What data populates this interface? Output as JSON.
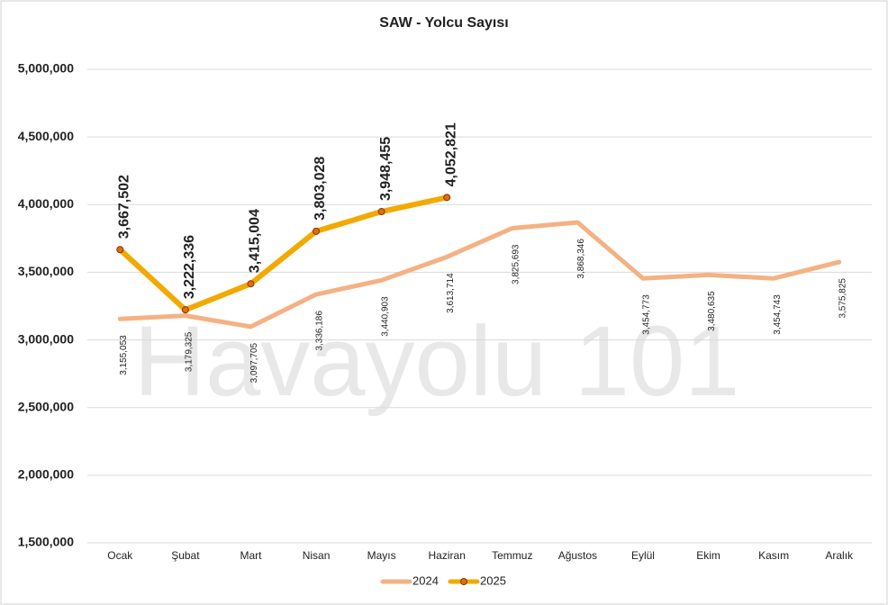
{
  "chart_data": {
    "type": "line",
    "title": "SAW - Yolcu Sayısı",
    "watermark": "Havayolu 101",
    "categories": [
      "Ocak",
      "Şubat",
      "Mart",
      "Nisan",
      "Mayıs",
      "Haziran",
      "Temmuz",
      "Ağustos",
      "Eylül",
      "Ekim",
      "Kasım",
      "Aralık"
    ],
    "series": [
      {
        "name": "2024",
        "color": "#f4b183",
        "marker": false,
        "values": [
          3155053,
          3179325,
          3097705,
          3336186,
          3440903,
          3613714,
          3825693,
          3868346,
          3454773,
          3480635,
          3454743,
          3575825
        ],
        "value_labels": [
          "3,155,053",
          "3,179,325",
          "3,097,705",
          "3,336,186",
          "3,440,903",
          "3,613,714",
          "3,825,693",
          "3,868,346",
          "3,454,773",
          "3,480,635",
          "3,454,743",
          "3,575,825"
        ]
      },
      {
        "name": "2025",
        "color": "#f2a900",
        "marker": true,
        "marker_color": "#e46c0a",
        "values": [
          3667502,
          3222336,
          3415004,
          3803028,
          3948455,
          4052821,
          null,
          null,
          null,
          null,
          null,
          null
        ],
        "value_labels": [
          "3,667,502",
          "3,222,336",
          "3,415,004",
          "3,803,028",
          "3,948,455",
          "4,052,821",
          null,
          null,
          null,
          null,
          null,
          null
        ]
      }
    ],
    "ylim": [
      1500000,
      5000000
    ],
    "yticks": [
      {
        "value": 1500000,
        "label": "1,500,000"
      },
      {
        "value": 2000000,
        "label": "2,000,000"
      },
      {
        "value": 2500000,
        "label": "2,500,000"
      },
      {
        "value": 3000000,
        "label": "3,000,000"
      },
      {
        "value": 3500000,
        "label": "3,500,000"
      },
      {
        "value": 4000000,
        "label": "4,000,000"
      },
      {
        "value": 4500000,
        "label": "4,500,000"
      },
      {
        "value": 5000000,
        "label": "5,000,000"
      }
    ],
    "grid": true,
    "legend": "bottom"
  }
}
